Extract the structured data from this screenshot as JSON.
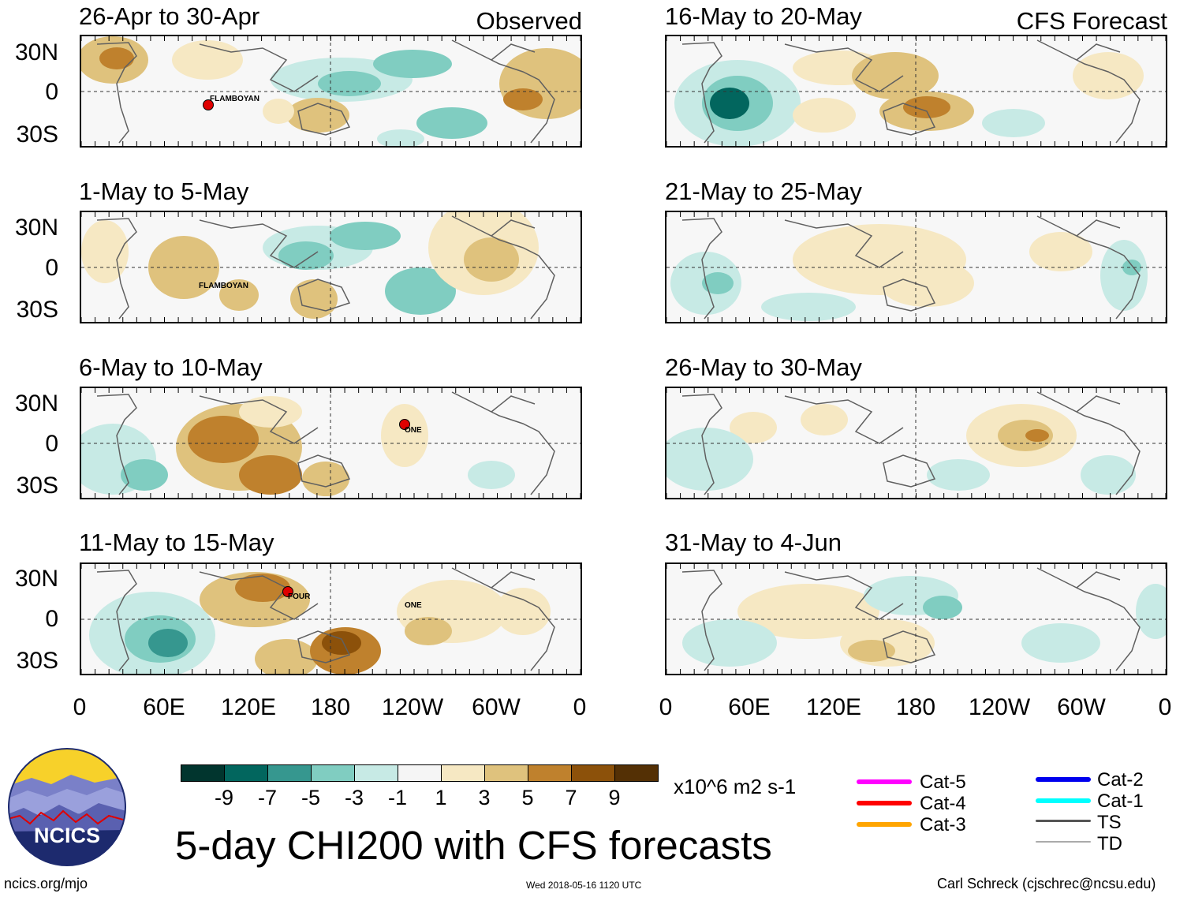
{
  "title": "5-day CHI200 with CFS forecasts",
  "footer": {
    "site": "ncics.org/mjo",
    "timestamp": "Wed 2018-05-16 1120 UTC",
    "credit": "Carl Schreck (cjschrec@ncsu.edu)"
  },
  "logo": {
    "text": "NCICS"
  },
  "column_labels": {
    "left": "Observed",
    "right": "CFS Forecast"
  },
  "lat_labels": [
    "30N",
    "0",
    "30S"
  ],
  "lon_labels": [
    "0",
    "60E",
    "120E",
    "180",
    "120W",
    "60W",
    "0"
  ],
  "panels_left": [
    {
      "title": "26-Apr to 30-Apr",
      "storms": [
        "FLAMBOYAN"
      ]
    },
    {
      "title": "1-May to 5-May",
      "storms": [
        "FLAMBOYAN"
      ]
    },
    {
      "title": "6-May to 10-May",
      "storms": [
        "ONE"
      ]
    },
    {
      "title": "11-May to 15-May",
      "storms": [
        "FOUR",
        "ONE"
      ]
    }
  ],
  "panels_right": [
    {
      "title": "16-May to 20-May"
    },
    {
      "title": "21-May to 25-May"
    },
    {
      "title": "26-May to 30-May"
    },
    {
      "title": "31-May to 4-Jun"
    }
  ],
  "colorbar": {
    "ticks": [
      "-9",
      "-7",
      "-5",
      "-3",
      "-1",
      "1",
      "3",
      "5",
      "7",
      "9"
    ],
    "colors": [
      "#01352e",
      "#02665e",
      "#36978f",
      "#80cdc1",
      "#c7eae5",
      "#f5f5f5",
      "#f6e8c3",
      "#dfc27d",
      "#bf812d",
      "#8c510a",
      "#543005"
    ],
    "units": "x10^6 m2 s-1"
  },
  "legend": {
    "left": [
      {
        "label": "Cat-5",
        "color": "#ff00ff"
      },
      {
        "label": "Cat-4",
        "color": "#ff0000"
      },
      {
        "label": "Cat-3",
        "color": "#ffa500"
      }
    ],
    "right": [
      {
        "label": "Cat-2",
        "color": "#0000ee"
      },
      {
        "label": "Cat-1",
        "color": "#00ffff"
      },
      {
        "label": "TS",
        "color": "#555555"
      },
      {
        "label": "TD",
        "color": "#aaaaaa"
      }
    ]
  }
}
